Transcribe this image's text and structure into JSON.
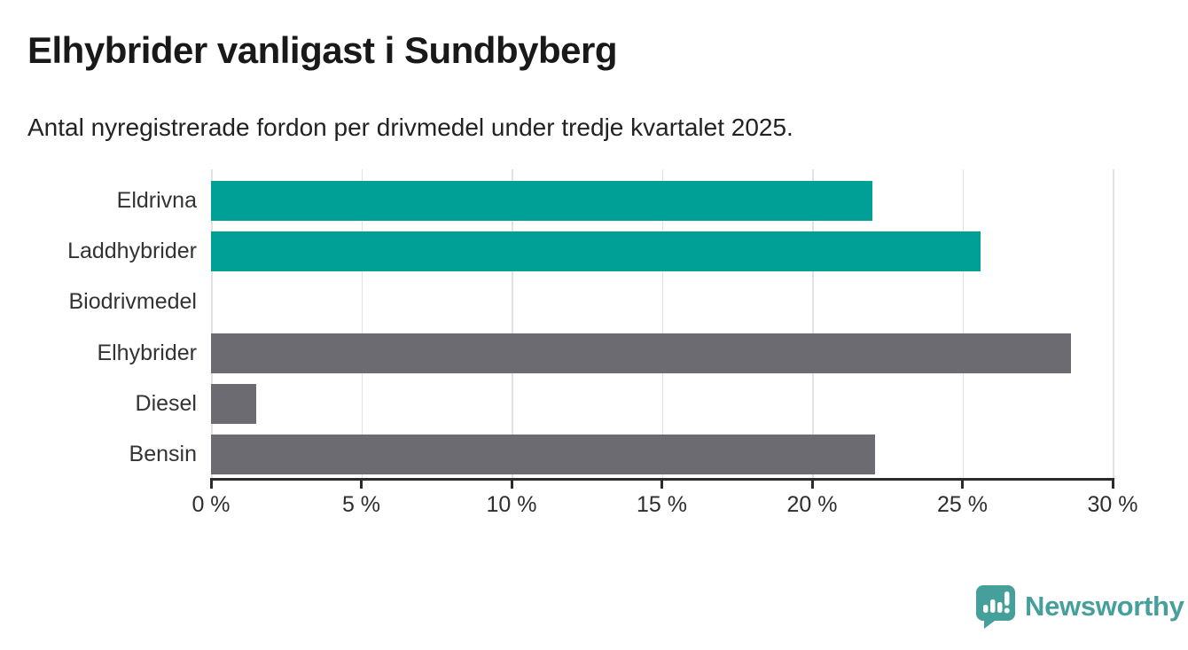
{
  "header": {
    "title": "Elhybrider vanligast i Sundbyberg",
    "subtitle": "Antal nyregistrerade fordon per drivmedel under tredje kvartalet 2025."
  },
  "chart_data": {
    "type": "bar",
    "orientation": "horizontal",
    "title": "Elhybrider vanligast i Sundbyberg",
    "subtitle": "Antal nyregistrerade fordon per drivmedel under tredje kvartalet 2025.",
    "categories": [
      "Eldrivna",
      "Laddhybrider",
      "Biodrivmedel",
      "Elhybrider",
      "Diesel",
      "Bensin"
    ],
    "values": [
      22,
      25.6,
      0,
      28.6,
      1.5,
      22.1
    ],
    "unit": "%",
    "bar_colors": [
      "#00a096",
      "#00a096",
      "#6c6b72",
      "#6c6b72",
      "#6c6b72",
      "#6c6b72"
    ],
    "xlim": [
      0,
      30
    ],
    "x_tick_values": [
      0,
      5,
      10,
      15,
      20,
      25,
      30
    ],
    "x_tick_labels": [
      "0 %",
      "5 %",
      "10 %",
      "15 %",
      "20 %",
      "25 %",
      "30 %"
    ],
    "xlabel": "",
    "ylabel": "",
    "grid": true,
    "legend": false
  },
  "colors": {
    "highlight_bar": "#00a096",
    "default_bar": "#6c6b72",
    "gridline": "#e2e2e2",
    "axis": "#2b2b2b",
    "brand": "#45a09b"
  },
  "branding": {
    "wordmark": "Newsworthy"
  }
}
